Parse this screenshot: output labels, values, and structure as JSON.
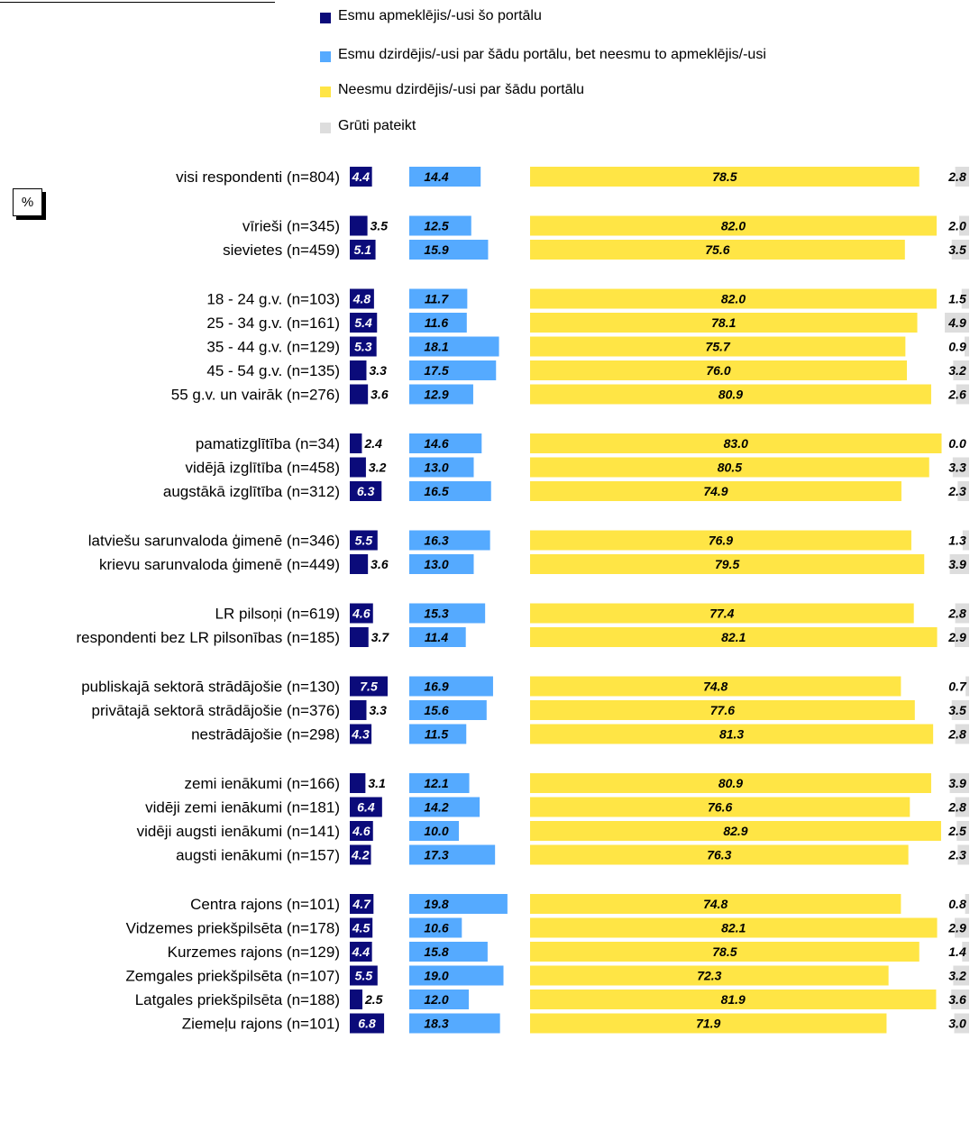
{
  "legend": [
    {
      "label": "Esmu apmeklējis/-usi šo portālu",
      "color": "#0b0b7a"
    },
    {
      "label": "Esmu dzirdējis/-usi par šādu portālu, bet neesmu to apmeklējis/-usi",
      "color": "#55aaff"
    },
    {
      "label": "Neesmu dzirdējis/-usi par šādu portālu",
      "color": "#ffe545"
    },
    {
      "label": "Grūti pateikt",
      "color": "#dddddd"
    }
  ],
  "unit_box": "%",
  "chart_data": {
    "type": "bar",
    "stacked": false,
    "orientation": "horizontal",
    "categories": [
      "visi respondenti (n=804)",
      "vīrieši (n=345)",
      "sievietes (n=459)",
      "18 - 24 g.v. (n=103)",
      "25 - 34 g.v. (n=161)",
      "35 - 44 g.v. (n=129)",
      "45 - 54 g.v. (n=135)",
      "55 g.v. un vairāk (n=276)",
      "pamatizglītība (n=34)",
      "vidējā izglītība (n=458)",
      "augstākā izglītība (n=312)",
      "latviešu sarunvaloda ģimenē (n=346)",
      "krievu sarunvaloda ģimenē (n=449)",
      "LR pilsoņi (n=619)",
      "respondenti bez LR pilsonības (n=185)",
      "publiskajā sektorā strādājošie (n=130)",
      "privātajā sektorā strādājošie (n=376)",
      "nestrādājošie (n=298)",
      "zemi ienākumi (n=166)",
      "vidēji zemi ienākumi (n=181)",
      "vidēji augsti ienākumi (n=141)",
      "augsti ienākumi (n=157)",
      "Centra rajons (n=101)",
      "Vidzemes priekšpilsēta (n=178)",
      "Kurzemes rajons (n=129)",
      "Zemgales priekšpilsēta (n=107)",
      "Latgales priekšpilsēta (n=188)",
      "Ziemeļu rajons (n=101)"
    ],
    "series": [
      {
        "name": "Esmu apmeklējis/-usi šo portālu",
        "color": "#0b0b7a",
        "values": [
          4.4,
          3.5,
          5.1,
          4.8,
          5.4,
          5.3,
          3.3,
          3.6,
          2.4,
          3.2,
          6.3,
          5.5,
          3.6,
          4.6,
          3.7,
          7.5,
          3.3,
          4.3,
          3.1,
          6.4,
          4.6,
          4.2,
          4.7,
          4.5,
          4.4,
          5.5,
          2.5,
          6.8
        ]
      },
      {
        "name": "Esmu dzirdējis/-usi par šādu portālu, bet neesmu to apmeklējis/-usi",
        "color": "#55aaff",
        "values": [
          14.4,
          12.5,
          15.9,
          11.7,
          11.6,
          18.1,
          17.5,
          12.9,
          14.6,
          13.0,
          16.5,
          16.3,
          13.0,
          15.3,
          11.4,
          16.9,
          15.6,
          11.5,
          12.1,
          14.2,
          10.0,
          17.3,
          19.8,
          10.6,
          15.8,
          19.0,
          12.0,
          18.3
        ]
      },
      {
        "name": "Neesmu dzirdējis/-usi par šādu portālu",
        "color": "#ffe545",
        "values": [
          78.5,
          82.0,
          75.6,
          82.0,
          78.1,
          75.7,
          76.0,
          80.9,
          83.0,
          80.5,
          74.9,
          76.9,
          79.5,
          77.4,
          82.1,
          74.8,
          77.6,
          81.3,
          80.9,
          76.6,
          82.9,
          76.3,
          74.8,
          82.1,
          78.5,
          72.3,
          81.9,
          71.9
        ]
      },
      {
        "name": "Grūti pateikt",
        "color": "#dddddd",
        "values": [
          2.8,
          2.0,
          3.5,
          1.5,
          4.9,
          0.9,
          3.2,
          2.6,
          0.0,
          3.3,
          2.3,
          1.3,
          3.9,
          2.8,
          2.9,
          0.7,
          3.5,
          2.8,
          3.9,
          2.8,
          2.5,
          2.3,
          0.8,
          2.9,
          1.4,
          3.2,
          3.6,
          3.0
        ]
      }
    ],
    "value_format": "0.0",
    "grid": false,
    "legend_position": "top"
  }
}
